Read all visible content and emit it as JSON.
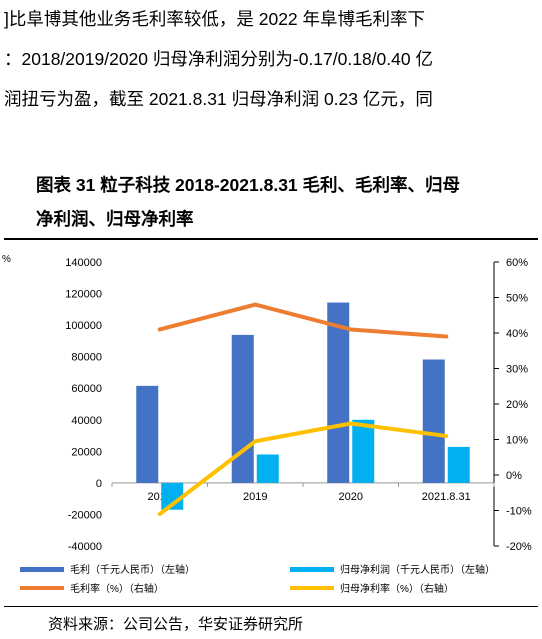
{
  "body_text": {
    "line1": "]比阜博其他业务毛利率较低，是 2022 年阜博毛利率下",
    "line2": "：2018/2019/2020 归母净利润分别为-0.17/0.18/0.40 亿",
    "line3": "润扭亏为盈，截至 2021.8.31 归母净利润 0.23 亿元，同"
  },
  "figure": {
    "title_line1": "图表  31  粒子科技 2018-2021.8.31 毛利、毛利率、归母",
    "title_line2": "净利润、归母净利率",
    "source": "资料来源：公司公告，华安证券研究所",
    "corner_mark": "%"
  },
  "colors": {
    "gross_profit": "#4472C4",
    "net_profit": "#00B0F0",
    "gross_margin": "#ED7D31",
    "net_margin": "#FFC000"
  },
  "chart_data": {
    "type": "bar",
    "categories": [
      "2018",
      "2019",
      "2020",
      "2021.8.31"
    ],
    "series": [
      {
        "name": "毛利（千元人民币）（左轴）",
        "kind": "bar",
        "axis": "left",
        "color": "#4472C4",
        "values": [
          61500,
          93800,
          114300,
          78200
        ]
      },
      {
        "name": "归母净利润（千元人民币）（左轴）",
        "kind": "bar",
        "axis": "left",
        "color": "#00B0F0",
        "values": [
          -17000,
          18000,
          40000,
          22800
        ]
      },
      {
        "name": "毛利率（%）（右轴）",
        "kind": "line",
        "axis": "right",
        "color": "#ED7D31",
        "values": [
          41,
          48,
          41,
          39
        ]
      },
      {
        "name": "归母净利率（%）（右轴）",
        "kind": "line",
        "axis": "right",
        "color": "#FFC000",
        "values": [
          -11,
          9.5,
          14.5,
          11
        ]
      }
    ],
    "ylim_left": [
      -40000,
      140000
    ],
    "yticks_left": [
      "140000",
      "120000",
      "100000",
      "80000",
      "60000",
      "40000",
      "20000",
      "0",
      "-20000",
      "-40000"
    ],
    "ylim_right": [
      -20,
      60
    ],
    "yticks_right": [
      "60%",
      "50%",
      "40%",
      "30%",
      "20%",
      "10%",
      "0%",
      "-10%",
      "-20%"
    ],
    "legend_position": "bottom",
    "grid": false
  }
}
